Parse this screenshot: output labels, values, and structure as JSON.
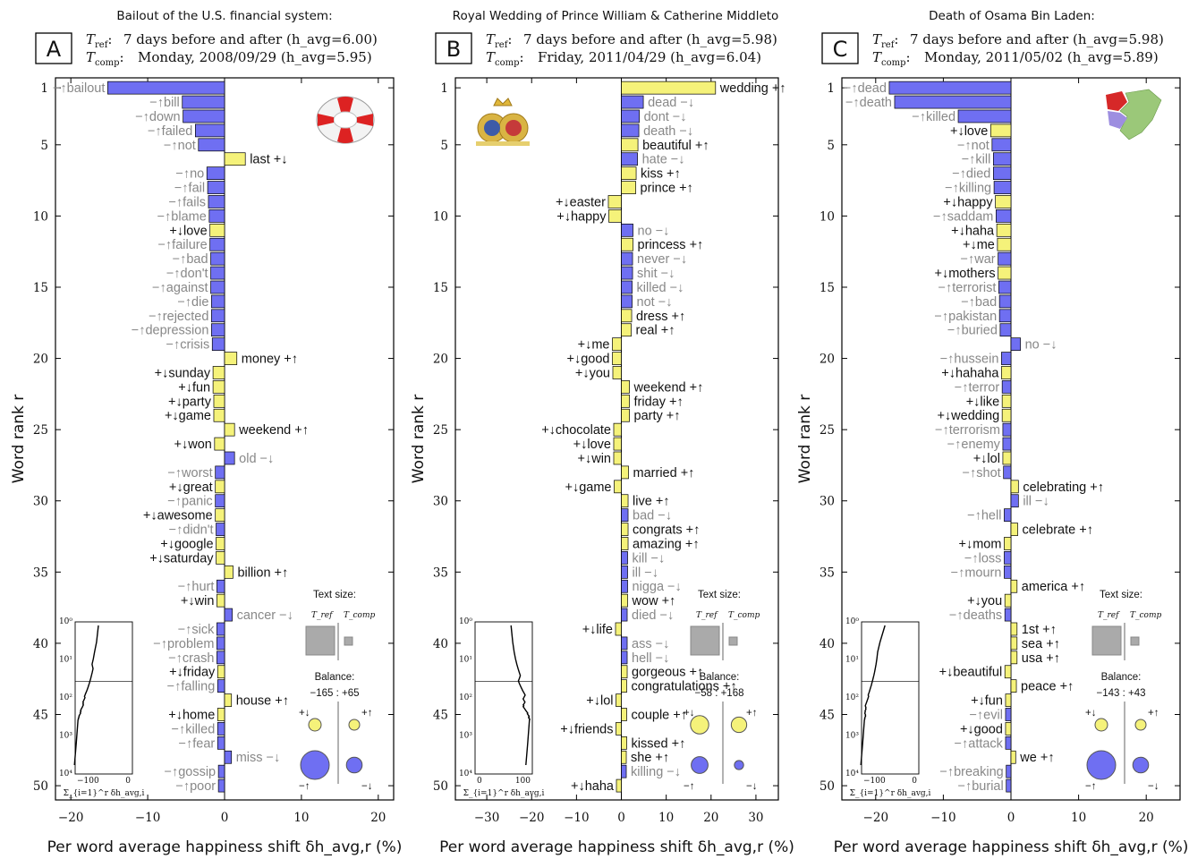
{
  "colors": {
    "neg": "#6f6ff2",
    "pos": "#f5f27a",
    "gray": "#888888",
    "dark": "#111111",
    "rule": "#000000"
  },
  "axis": {
    "ylabel": "Word rank r",
    "xlabel": "Per word average happiness shift δh_avg,r (%)",
    "text_size_label": "Text size:",
    "balance_label": "Balance:",
    "tref_label": "T_ref",
    "tcomp_label": "T_comp",
    "inset_xlabel": "Σ_{i=1}^r δh_avg,i"
  },
  "icons": [
    "lifebuoy-icon",
    "royal-crest-icon",
    "afghanistan-pakistan-map-icon"
  ],
  "chart_data": [
    {
      "type": "bar",
      "panel": "A",
      "title": "Bailout of the U.S. financial system:",
      "tref_text": "7 days before and after (h_avg=6.00)",
      "tcomp_text": "Monday, 2008/09/29 (h_avg=5.95)",
      "xlim": [
        -22,
        22
      ],
      "xticks": [
        -20,
        -10,
        0,
        10,
        20
      ],
      "ylim": [
        0.3,
        51
      ],
      "yticks": [
        1,
        5,
        10,
        15,
        20,
        25,
        30,
        35,
        40,
        45,
        50
      ],
      "balance": "-165 : +65",
      "words": [
        {
          "r": 1,
          "w": "bailout",
          "v": -15.2,
          "t": "-up"
        },
        {
          "r": 2,
          "w": "bill",
          "v": -5.5,
          "t": "-up"
        },
        {
          "r": 3,
          "w": "down",
          "v": -5.4,
          "t": "-up"
        },
        {
          "r": 4,
          "w": "failed",
          "v": -3.8,
          "t": "-up"
        },
        {
          "r": 5,
          "w": "not",
          "v": -3.4,
          "t": "-up"
        },
        {
          "r": 6,
          "w": "last",
          "v": 2.7,
          "t": "+down"
        },
        {
          "r": 7,
          "w": "no",
          "v": -2.3,
          "t": "-up"
        },
        {
          "r": 8,
          "w": "fail",
          "v": -2.2,
          "t": "-up"
        },
        {
          "r": 9,
          "w": "fails",
          "v": -2.1,
          "t": "-up"
        },
        {
          "r": 10,
          "w": "blame",
          "v": -2.0,
          "t": "-up"
        },
        {
          "r": 11,
          "w": "love",
          "v": -1.9,
          "t": "+down"
        },
        {
          "r": 12,
          "w": "failure",
          "v": -1.9,
          "t": "-up"
        },
        {
          "r": 13,
          "w": "bad",
          "v": -1.8,
          "t": "-up"
        },
        {
          "r": 14,
          "w": "don't",
          "v": -1.8,
          "t": "-up"
        },
        {
          "r": 15,
          "w": "against",
          "v": -1.8,
          "t": "-up"
        },
        {
          "r": 16,
          "w": "die",
          "v": -1.7,
          "t": "-up"
        },
        {
          "r": 17,
          "w": "rejected",
          "v": -1.7,
          "t": "-up"
        },
        {
          "r": 18,
          "w": "depression",
          "v": -1.7,
          "t": "-up"
        },
        {
          "r": 19,
          "w": "crisis",
          "v": -1.6,
          "t": "-up"
        },
        {
          "r": 20,
          "w": "money",
          "v": 1.6,
          "t": "+up"
        },
        {
          "r": 21,
          "w": "sunday",
          "v": -1.5,
          "t": "+down"
        },
        {
          "r": 22,
          "w": "fun",
          "v": -1.5,
          "t": "+down"
        },
        {
          "r": 23,
          "w": "party",
          "v": -1.4,
          "t": "+down"
        },
        {
          "r": 24,
          "w": "game",
          "v": -1.4,
          "t": "+down"
        },
        {
          "r": 25,
          "w": "weekend",
          "v": 1.3,
          "t": "+up"
        },
        {
          "r": 26,
          "w": "won",
          "v": -1.3,
          "t": "+down"
        },
        {
          "r": 27,
          "w": "old",
          "v": 1.3,
          "t": "-down"
        },
        {
          "r": 28,
          "w": "worst",
          "v": -1.2,
          "t": "-up"
        },
        {
          "r": 29,
          "w": "great",
          "v": -1.2,
          "t": "+down"
        },
        {
          "r": 30,
          "w": "panic",
          "v": -1.2,
          "t": "-up"
        },
        {
          "r": 31,
          "w": "awesome",
          "v": -1.2,
          "t": "+down"
        },
        {
          "r": 32,
          "w": "didn't",
          "v": -1.1,
          "t": "-up"
        },
        {
          "r": 33,
          "w": "google",
          "v": -1.1,
          "t": "+down"
        },
        {
          "r": 34,
          "w": "saturday",
          "v": -1.1,
          "t": "+down"
        },
        {
          "r": 35,
          "w": "billion",
          "v": 1.1,
          "t": "+up"
        },
        {
          "r": 36,
          "w": "hurt",
          "v": -1.0,
          "t": "-up"
        },
        {
          "r": 37,
          "w": "win",
          "v": -1.0,
          "t": "+down"
        },
        {
          "r": 38,
          "w": "cancer",
          "v": 1.0,
          "t": "-down"
        },
        {
          "r": 39,
          "w": "sick",
          "v": -1.0,
          "t": "-up"
        },
        {
          "r": 40,
          "w": "problem",
          "v": -1.0,
          "t": "-up"
        },
        {
          "r": 41,
          "w": "crash",
          "v": -1.0,
          "t": "-up"
        },
        {
          "r": 42,
          "w": "friday",
          "v": -0.9,
          "t": "+down"
        },
        {
          "r": 43,
          "w": "falling",
          "v": -0.9,
          "t": "-up"
        },
        {
          "r": 44,
          "w": "house",
          "v": 0.9,
          "t": "+up"
        },
        {
          "r": 45,
          "w": "home",
          "v": -0.9,
          "t": "+down"
        },
        {
          "r": 46,
          "w": "killed",
          "v": -0.9,
          "t": "-up"
        },
        {
          "r": 47,
          "w": "fear",
          "v": -0.9,
          "t": "-up"
        },
        {
          "r": 48,
          "w": "miss",
          "v": 0.9,
          "t": "-down"
        },
        {
          "r": 49,
          "w": "gossip",
          "v": -0.8,
          "t": "-up"
        },
        {
          "r": 50,
          "w": "poor",
          "v": -0.8,
          "t": "-up"
        }
      ]
    },
    {
      "type": "bar",
      "panel": "B",
      "title": "Royal Wedding of Prince William & Catherine Middleto",
      "tref_text": "7 days before and after (h_avg=5.98)",
      "tcomp_text": "Friday, 2011/04/29 (h_avg=6.04)",
      "xlim": [
        -37,
        35
      ],
      "xticks": [
        -30,
        -20,
        -10,
        0,
        10,
        20,
        30
      ],
      "ylim": [
        0.3,
        51
      ],
      "yticks": [
        1,
        5,
        10,
        15,
        20,
        25,
        30,
        35,
        40,
        45,
        50
      ],
      "balance": "-58 : +168",
      "words": [
        {
          "r": 1,
          "w": "wedding",
          "v": 21.0,
          "t": "+up"
        },
        {
          "r": 2,
          "w": "dead",
          "v": 4.9,
          "t": "-down"
        },
        {
          "r": 3,
          "w": "dont",
          "v": 4.0,
          "t": "-down"
        },
        {
          "r": 4,
          "w": "death",
          "v": 3.9,
          "t": "-down"
        },
        {
          "r": 5,
          "w": "beautiful",
          "v": 3.7,
          "t": "+up"
        },
        {
          "r": 6,
          "w": "hate",
          "v": 3.6,
          "t": "-down"
        },
        {
          "r": 7,
          "w": "kiss",
          "v": 3.3,
          "t": "+up"
        },
        {
          "r": 8,
          "w": "prince",
          "v": 3.2,
          "t": "+up"
        },
        {
          "r": 9,
          "w": "easter",
          "v": -2.9,
          "t": "+down"
        },
        {
          "r": 10,
          "w": "happy",
          "v": -2.8,
          "t": "+down"
        },
        {
          "r": 11,
          "w": "no",
          "v": 2.6,
          "t": "-down"
        },
        {
          "r": 12,
          "w": "princess",
          "v": 2.6,
          "t": "+up"
        },
        {
          "r": 13,
          "w": "never",
          "v": 2.5,
          "t": "-down"
        },
        {
          "r": 14,
          "w": "shit",
          "v": 2.5,
          "t": "-down"
        },
        {
          "r": 15,
          "w": "killed",
          "v": 2.4,
          "t": "-down"
        },
        {
          "r": 16,
          "w": "not",
          "v": 2.4,
          "t": "-down"
        },
        {
          "r": 17,
          "w": "dress",
          "v": 2.3,
          "t": "+up"
        },
        {
          "r": 18,
          "w": "real",
          "v": 2.2,
          "t": "+up"
        },
        {
          "r": 19,
          "w": "me",
          "v": -2.0,
          "t": "+down"
        },
        {
          "r": 20,
          "w": "good",
          "v": -2.0,
          "t": "+down"
        },
        {
          "r": 21,
          "w": "you",
          "v": -1.9,
          "t": "+down"
        },
        {
          "r": 22,
          "w": "weekend",
          "v": 1.8,
          "t": "+up"
        },
        {
          "r": 23,
          "w": "friday",
          "v": 1.8,
          "t": "+up"
        },
        {
          "r": 24,
          "w": "party",
          "v": 1.8,
          "t": "+up"
        },
        {
          "r": 25,
          "w": "chocolate",
          "v": -1.7,
          "t": "+down"
        },
        {
          "r": 26,
          "w": "love",
          "v": -1.7,
          "t": "+down"
        },
        {
          "r": 27,
          "w": "win",
          "v": -1.7,
          "t": "+down"
        },
        {
          "r": 28,
          "w": "married",
          "v": 1.6,
          "t": "+up"
        },
        {
          "r": 29,
          "w": "game",
          "v": -1.6,
          "t": "+down"
        },
        {
          "r": 30,
          "w": "live",
          "v": 1.5,
          "t": "+up"
        },
        {
          "r": 31,
          "w": "bad",
          "v": 1.5,
          "t": "-down"
        },
        {
          "r": 32,
          "w": "congrats",
          "v": 1.5,
          "t": "+up"
        },
        {
          "r": 33,
          "w": "amazing",
          "v": 1.5,
          "t": "+up"
        },
        {
          "r": 34,
          "w": "kill",
          "v": 1.4,
          "t": "-down"
        },
        {
          "r": 35,
          "w": "ill",
          "v": 1.4,
          "t": "-down"
        },
        {
          "r": 36,
          "w": "nigga",
          "v": 1.4,
          "t": "-down"
        },
        {
          "r": 37,
          "w": "wow",
          "v": 1.4,
          "t": "+up"
        },
        {
          "r": 38,
          "w": "died",
          "v": 1.3,
          "t": "-down"
        },
        {
          "r": 39,
          "w": "life",
          "v": -1.3,
          "t": "+down"
        },
        {
          "r": 40,
          "w": "ass",
          "v": 1.3,
          "t": "-down"
        },
        {
          "r": 41,
          "w": "hell",
          "v": 1.3,
          "t": "-down"
        },
        {
          "r": 42,
          "w": "gorgeous",
          "v": 1.3,
          "t": "+up"
        },
        {
          "r": 43,
          "w": "congratulations",
          "v": 1.2,
          "t": "+up"
        },
        {
          "r": 44,
          "w": "lol",
          "v": -1.2,
          "t": "+down"
        },
        {
          "r": 45,
          "w": "couple",
          "v": 1.2,
          "t": "+up"
        },
        {
          "r": 46,
          "w": "friends",
          "v": -1.2,
          "t": "+down"
        },
        {
          "r": 47,
          "w": "kissed",
          "v": 1.2,
          "t": "+up"
        },
        {
          "r": 48,
          "w": "she",
          "v": 1.1,
          "t": "+up"
        },
        {
          "r": 49,
          "w": "killing",
          "v": 1.1,
          "t": "-down"
        },
        {
          "r": 50,
          "w": "haha",
          "v": -1.1,
          "t": "+down"
        }
      ]
    },
    {
      "type": "bar",
      "panel": "C",
      "title": "Death of Osama Bin Laden:",
      "tref_text": "7 days before and after (h_avg=5.98)",
      "tcomp_text": "Monday, 2011/05/02 (h_avg=5.89)",
      "xlim": [
        -25,
        25
      ],
      "xticks": [
        -20,
        -10,
        0,
        10,
        20
      ],
      "ylim": [
        0.3,
        51
      ],
      "yticks": [
        1,
        5,
        10,
        15,
        20,
        25,
        30,
        35,
        40,
        45,
        50
      ],
      "balance": "-143 : +43",
      "words": [
        {
          "r": 1,
          "w": "dead",
          "v": -18.0,
          "t": "-up"
        },
        {
          "r": 2,
          "w": "death",
          "v": -17.2,
          "t": "-up"
        },
        {
          "r": 3,
          "w": "killed",
          "v": -7.8,
          "t": "-up"
        },
        {
          "r": 4,
          "w": "love",
          "v": -3.0,
          "t": "+down"
        },
        {
          "r": 5,
          "w": "not",
          "v": -2.8,
          "t": "-up"
        },
        {
          "r": 6,
          "w": "kill",
          "v": -2.6,
          "t": "-up"
        },
        {
          "r": 7,
          "w": "died",
          "v": -2.6,
          "t": "-up"
        },
        {
          "r": 8,
          "w": "killing",
          "v": -2.5,
          "t": "-up"
        },
        {
          "r": 9,
          "w": "happy",
          "v": -2.3,
          "t": "+down"
        },
        {
          "r": 10,
          "w": "saddam",
          "v": -2.2,
          "t": "-up"
        },
        {
          "r": 11,
          "w": "haha",
          "v": -2.1,
          "t": "+down"
        },
        {
          "r": 12,
          "w": "me",
          "v": -2.0,
          "t": "+down"
        },
        {
          "r": 13,
          "w": "war",
          "v": -1.9,
          "t": "-up"
        },
        {
          "r": 14,
          "w": "mothers",
          "v": -1.9,
          "t": "+down"
        },
        {
          "r": 15,
          "w": "terrorist",
          "v": -1.8,
          "t": "-up"
        },
        {
          "r": 16,
          "w": "bad",
          "v": -1.7,
          "t": "-up"
        },
        {
          "r": 17,
          "w": "pakistan",
          "v": -1.7,
          "t": "-up"
        },
        {
          "r": 18,
          "w": "buried",
          "v": -1.6,
          "t": "-up"
        },
        {
          "r": 19,
          "w": "no",
          "v": 1.4,
          "t": "-down"
        },
        {
          "r": 20,
          "w": "hussein",
          "v": -1.4,
          "t": "-up"
        },
        {
          "r": 21,
          "w": "hahaha",
          "v": -1.4,
          "t": "+down"
        },
        {
          "r": 22,
          "w": "terror",
          "v": -1.3,
          "t": "-up"
        },
        {
          "r": 23,
          "w": "like",
          "v": -1.3,
          "t": "+down"
        },
        {
          "r": 24,
          "w": "wedding",
          "v": -1.3,
          "t": "+down"
        },
        {
          "r": 25,
          "w": "terrorism",
          "v": -1.2,
          "t": "-up"
        },
        {
          "r": 26,
          "w": "enemy",
          "v": -1.2,
          "t": "-up"
        },
        {
          "r": 27,
          "w": "lol",
          "v": -1.2,
          "t": "+down"
        },
        {
          "r": 28,
          "w": "shot",
          "v": -1.1,
          "t": "-up"
        },
        {
          "r": 29,
          "w": "celebrating",
          "v": 1.1,
          "t": "+up"
        },
        {
          "r": 30,
          "w": "ill",
          "v": 1.1,
          "t": "-down"
        },
        {
          "r": 31,
          "w": "hell",
          "v": -1.0,
          "t": "-up"
        },
        {
          "r": 32,
          "w": "celebrate",
          "v": 1.0,
          "t": "+up"
        },
        {
          "r": 33,
          "w": "mom",
          "v": -1.0,
          "t": "+down"
        },
        {
          "r": 34,
          "w": "loss",
          "v": -1.0,
          "t": "-up"
        },
        {
          "r": 35,
          "w": "mourn",
          "v": -1.0,
          "t": "-up"
        },
        {
          "r": 36,
          "w": "america",
          "v": 0.9,
          "t": "+up"
        },
        {
          "r": 37,
          "w": "you",
          "v": -0.9,
          "t": "+down"
        },
        {
          "r": 38,
          "w": "deaths",
          "v": -0.9,
          "t": "-up"
        },
        {
          "r": 39,
          "w": "1st",
          "v": 0.9,
          "t": "+up"
        },
        {
          "r": 40,
          "w": "sea",
          "v": 0.9,
          "t": "+up"
        },
        {
          "r": 41,
          "w": "usa",
          "v": 0.9,
          "t": "+up"
        },
        {
          "r": 42,
          "w": "beautiful",
          "v": -0.9,
          "t": "+down"
        },
        {
          "r": 43,
          "w": "peace",
          "v": 0.8,
          "t": "+up"
        },
        {
          "r": 44,
          "w": "fun",
          "v": -0.8,
          "t": "+down"
        },
        {
          "r": 45,
          "w": "evil",
          "v": -0.8,
          "t": "-up"
        },
        {
          "r": 46,
          "w": "good",
          "v": -0.8,
          "t": "+down"
        },
        {
          "r": 47,
          "w": "attack",
          "v": -0.8,
          "t": "-up"
        },
        {
          "r": 48,
          "w": "we",
          "v": 0.7,
          "t": "+up"
        },
        {
          "r": 49,
          "w": "breaking",
          "v": -0.7,
          "t": "-up"
        },
        {
          "r": 50,
          "w": "burial",
          "v": -0.7,
          "t": "-up"
        }
      ]
    }
  ]
}
